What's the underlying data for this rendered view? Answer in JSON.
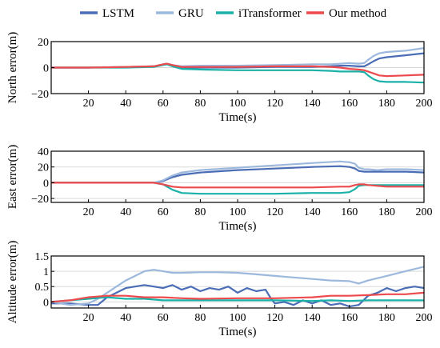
{
  "legend": [
    {
      "label": "LSTM",
      "color": "#4a6db5"
    },
    {
      "label": "GRU",
      "color": "#9db8dd"
    },
    {
      "label": "iTransformer",
      "color": "#1ab2a8"
    },
    {
      "label": "Our method",
      "color": "#ec4a4c"
    }
  ],
  "chart_data": [
    {
      "type": "line",
      "xlabel": "Time(s)",
      "ylabel": "North error(m)",
      "xlim": [
        0,
        200
      ],
      "ylim": [
        -20,
        20
      ],
      "xticks": [
        "20",
        "40",
        "60",
        "80",
        "100",
        "120",
        "140",
        "160",
        "180",
        "200"
      ],
      "yticks": [
        "20",
        "0",
        "−20"
      ],
      "ytick_values": [
        20,
        0,
        -20
      ],
      "grid": "horizontal",
      "series": [
        {
          "name": "LSTM",
          "color": "#4a6db5",
          "width": 2.2,
          "x": [
            0,
            20,
            40,
            55,
            60,
            62,
            65,
            70,
            80,
            100,
            120,
            140,
            150,
            155,
            160,
            165,
            168,
            170,
            173,
            176,
            180,
            190,
            200
          ],
          "y": [
            0,
            0,
            0.5,
            1,
            2.5,
            3,
            2,
            0,
            0,
            0,
            0.5,
            0.5,
            1,
            1.5,
            1.5,
            1,
            1,
            2.5,
            5,
            7,
            8,
            9.5,
            11
          ]
        },
        {
          "name": "GRU",
          "color": "#9db8dd",
          "width": 2.2,
          "x": [
            0,
            20,
            40,
            55,
            60,
            62,
            65,
            70,
            80,
            100,
            120,
            140,
            150,
            155,
            160,
            165,
            168,
            170,
            173,
            176,
            180,
            190,
            200
          ],
          "y": [
            0,
            0,
            0.5,
            1,
            2.5,
            3,
            2,
            1,
            1.5,
            1.5,
            2,
            2.5,
            2.5,
            3,
            3.5,
            3,
            3.5,
            6,
            9,
            11,
            12,
            13,
            15
          ]
        },
        {
          "name": "iTransformer",
          "color": "#1ab2a8",
          "width": 2.2,
          "x": [
            0,
            20,
            40,
            55,
            60,
            62,
            65,
            70,
            80,
            100,
            120,
            140,
            150,
            155,
            160,
            165,
            168,
            170,
            173,
            176,
            180,
            190,
            200
          ],
          "y": [
            0,
            0,
            0,
            0.5,
            2,
            2.5,
            1,
            -1,
            -1.5,
            -2,
            -2,
            -2,
            -2.5,
            -3,
            -3,
            -3,
            -3.5,
            -6,
            -9,
            -10.5,
            -11,
            -11,
            -11.5
          ]
        },
        {
          "name": "Our method",
          "color": "#ec4a4c",
          "width": 2.2,
          "x": [
            0,
            20,
            40,
            55,
            60,
            62,
            65,
            70,
            80,
            100,
            120,
            140,
            150,
            155,
            160,
            165,
            168,
            170,
            173,
            176,
            180,
            190,
            200
          ],
          "y": [
            0,
            0,
            0.5,
            1,
            2.5,
            3,
            2,
            0.5,
            0.5,
            0.5,
            1,
            1,
            0.5,
            0,
            -1,
            -1.5,
            -2,
            -3,
            -4.5,
            -6,
            -6.5,
            -6,
            -5.5
          ]
        }
      ]
    },
    {
      "type": "line",
      "xlabel": "Time(s)",
      "ylabel": "East error(m)",
      "xlim": [
        0,
        200
      ],
      "ylim": [
        -25,
        40
      ],
      "xticks": [
        "20",
        "40",
        "60",
        "80",
        "100",
        "120",
        "140",
        "160",
        "180",
        "200"
      ],
      "yticks": [
        "40",
        "20",
        "0",
        "−20"
      ],
      "ytick_values": [
        40,
        20,
        0,
        -20
      ],
      "grid": "horizontal",
      "series": [
        {
          "name": "LSTM",
          "color": "#4a6db5",
          "width": 2.2,
          "x": [
            0,
            20,
            40,
            50,
            55,
            60,
            65,
            70,
            80,
            100,
            120,
            140,
            155,
            160,
            163,
            165,
            168,
            170,
            175,
            180,
            190,
            200
          ],
          "y": [
            0,
            0,
            0,
            0,
            0,
            2,
            7,
            10,
            13,
            16,
            18,
            20,
            21,
            20,
            18,
            15,
            14,
            14,
            14,
            14,
            14,
            13
          ]
        },
        {
          "name": "GRU",
          "color": "#9db8dd",
          "width": 2.2,
          "x": [
            0,
            20,
            40,
            50,
            55,
            60,
            65,
            70,
            80,
            100,
            120,
            140,
            155,
            160,
            163,
            165,
            168,
            170,
            175,
            180,
            190,
            200
          ],
          "y": [
            0,
            0,
            0,
            0,
            0,
            3,
            9,
            13,
            16,
            19,
            22,
            25,
            27,
            26,
            24,
            19,
            17,
            17,
            16,
            17,
            17,
            16
          ]
        },
        {
          "name": "iTransformer",
          "color": "#1ab2a8",
          "width": 2.2,
          "x": [
            0,
            20,
            40,
            50,
            55,
            60,
            65,
            70,
            80,
            100,
            120,
            140,
            155,
            160,
            163,
            165,
            168,
            170,
            175,
            180,
            190,
            200
          ],
          "y": [
            0,
            0,
            0,
            0,
            0,
            -2,
            -9,
            -13,
            -14,
            -14,
            -14,
            -13,
            -13,
            -12,
            -8,
            -4,
            -3,
            -3,
            -3,
            -3,
            -3,
            -3
          ]
        },
        {
          "name": "Our method",
          "color": "#ec4a4c",
          "width": 2.2,
          "x": [
            0,
            20,
            40,
            50,
            55,
            60,
            65,
            70,
            80,
            100,
            120,
            140,
            155,
            160,
            163,
            165,
            168,
            170,
            175,
            180,
            190,
            200
          ],
          "y": [
            0,
            0,
            0,
            0,
            0,
            -2,
            -5,
            -6,
            -6,
            -6,
            -6,
            -6,
            -5,
            -5,
            -3,
            -2,
            -2,
            -3,
            -4,
            -5,
            -5,
            -5
          ]
        }
      ]
    },
    {
      "type": "line",
      "xlabel": "Time(s)",
      "ylabel": "Altitude error(m)",
      "xlim": [
        0,
        200
      ],
      "ylim": [
        -0.2,
        1.5
      ],
      "xticks": [
        "20",
        "40",
        "60",
        "80",
        "100",
        "120",
        "140",
        "160",
        "180",
        "200"
      ],
      "yticks": [
        "1.5",
        "1",
        "0.5",
        "0"
      ],
      "ytick_values": [
        1.5,
        1,
        0.5,
        0
      ],
      "grid": "horizontal",
      "series": [
        {
          "name": "LSTM",
          "color": "#4a6db5",
          "width": 2.2,
          "x": [
            0,
            10,
            20,
            25,
            30,
            35,
            40,
            45,
            50,
            55,
            60,
            65,
            70,
            75,
            80,
            85,
            90,
            95,
            100,
            105,
            110,
            115,
            118,
            120,
            125,
            130,
            135,
            140,
            145,
            150,
            155,
            160,
            165,
            170,
            175,
            180,
            185,
            190,
            195,
            200
          ],
          "y": [
            -0.05,
            -0.05,
            -0.1,
            -0.1,
            0.15,
            0.3,
            0.45,
            0.5,
            0.55,
            0.5,
            0.45,
            0.55,
            0.4,
            0.5,
            0.35,
            0.45,
            0.4,
            0.5,
            0.3,
            0.45,
            0.35,
            0.4,
            0.1,
            -0.05,
            0,
            -0.1,
            0.05,
            -0.05,
            0.05,
            -0.1,
            -0.05,
            -0.15,
            -0.1,
            0.2,
            0.3,
            0.45,
            0.35,
            0.45,
            0.5,
            0.45
          ]
        },
        {
          "name": "GRU",
          "color": "#9db8dd",
          "width": 2.2,
          "x": [
            0,
            10,
            20,
            25,
            30,
            35,
            40,
            45,
            50,
            55,
            60,
            65,
            70,
            80,
            90,
            100,
            110,
            120,
            130,
            140,
            150,
            160,
            165,
            170,
            180,
            190,
            200
          ],
          "y": [
            0,
            -0.1,
            -0.05,
            0.1,
            0.3,
            0.5,
            0.7,
            0.85,
            1.0,
            1.05,
            1.0,
            0.95,
            0.95,
            0.97,
            0.97,
            0.95,
            0.9,
            0.85,
            0.8,
            0.75,
            0.7,
            0.68,
            0.6,
            0.7,
            0.85,
            1.0,
            1.15
          ]
        },
        {
          "name": "iTransformer",
          "color": "#1ab2a8",
          "width": 2.2,
          "x": [
            0,
            10,
            20,
            30,
            40,
            50,
            60,
            70,
            80,
            100,
            120,
            140,
            150,
            160,
            170,
            180,
            190,
            200
          ],
          "y": [
            0,
            0.05,
            0.1,
            0.15,
            0.1,
            0.1,
            0.05,
            0.05,
            0.05,
            0.05,
            0.05,
            0.03,
            0.05,
            0.03,
            0.05,
            0.05,
            0.05,
            0.05
          ]
        },
        {
          "name": "Our method",
          "color": "#ec4a4c",
          "width": 2.2,
          "x": [
            0,
            10,
            20,
            30,
            40,
            50,
            60,
            70,
            80,
            100,
            120,
            140,
            150,
            160,
            170,
            180,
            190,
            200
          ],
          "y": [
            0,
            0.05,
            0.15,
            0.2,
            0.2,
            0.15,
            0.15,
            0.12,
            0.1,
            0.12,
            0.12,
            0.15,
            0.2,
            0.2,
            0.22,
            0.25,
            0.25,
            0.3
          ]
        }
      ]
    }
  ]
}
